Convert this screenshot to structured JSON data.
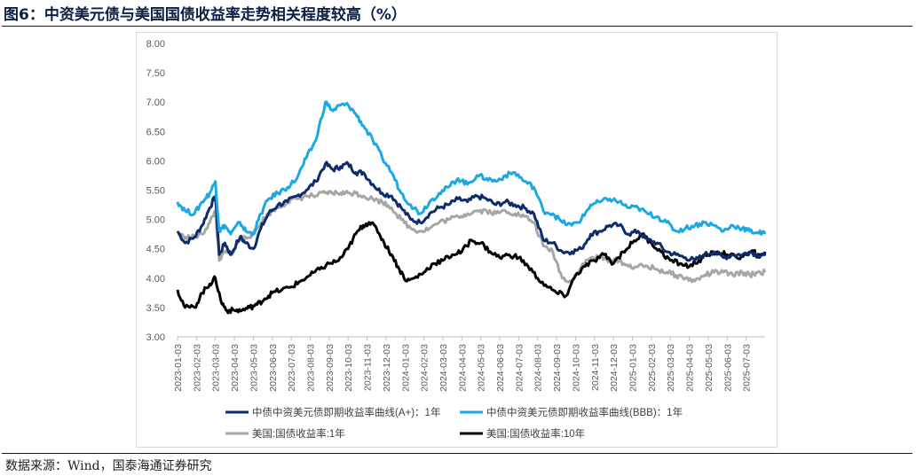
{
  "title": "图6：中资美元债与美国国债收益率走势相关程度较高（%）",
  "source": "数据来源：Wind，国泰海通证券研究",
  "chart_data": {
    "type": "line",
    "title": "中资美元债与美国国债收益率走势相关程度较高（%）",
    "ylim": [
      3.0,
      8.0
    ],
    "yticks": [
      "3.00",
      "3.50",
      "4.00",
      "4.50",
      "5.00",
      "5.50",
      "6.00",
      "6.50",
      "7.00",
      "7.50",
      "8.00"
    ],
    "x_months": 31,
    "xtick_labels": [
      "2023-01-03",
      "2023-02-03",
      "2023-03-03",
      "2023-04-03",
      "2023-05-03",
      "2023-06-03",
      "2023-07-03",
      "2023-08-03",
      "2023-09-03",
      "2023-10-03",
      "2023-11-03",
      "2023-12-03",
      "2024-01-03",
      "2024-02-03",
      "2024-03-03",
      "2024-04-03",
      "2024-05-03",
      "2024-06-03",
      "2024-07-03",
      "2024-08-03",
      "2024-09-03",
      "2024-10-03",
      "2024-11-03",
      "2024-12-03",
      "2025-01-03",
      "2025-02-03",
      "2025-03-03",
      "2025-04-03",
      "2025-05-03",
      "2025-06-03",
      "2025-07-03"
    ],
    "series": [
      {
        "name": "中债中资美元债即期收益率曲线(A+)：1年",
        "color": "#0e2b6b",
        "width": 3,
        "points": [
          [
            0,
            4.8
          ],
          [
            0.4,
            4.6
          ],
          [
            0.9,
            4.7
          ],
          [
            1.3,
            4.9
          ],
          [
            1.7,
            5.2
          ],
          [
            2.0,
            5.4
          ],
          [
            2.2,
            4.4
          ],
          [
            2.5,
            4.6
          ],
          [
            2.8,
            4.4
          ],
          [
            3.3,
            4.7
          ],
          [
            3.6,
            4.6
          ],
          [
            4.0,
            4.5
          ],
          [
            4.4,
            4.85
          ],
          [
            4.8,
            5.1
          ],
          [
            5.3,
            5.25
          ],
          [
            5.8,
            5.3
          ],
          [
            6.3,
            5.4
          ],
          [
            6.8,
            5.5
          ],
          [
            7.3,
            5.65
          ],
          [
            7.8,
            5.95
          ],
          [
            8.2,
            5.85
          ],
          [
            8.6,
            5.9
          ],
          [
            9.0,
            5.95
          ],
          [
            9.4,
            5.8
          ],
          [
            9.8,
            5.8
          ],
          [
            10.3,
            5.6
          ],
          [
            10.8,
            5.45
          ],
          [
            11.3,
            5.4
          ],
          [
            11.8,
            5.2
          ],
          [
            12.3,
            5.0
          ],
          [
            12.8,
            4.95
          ],
          [
            13.3,
            5.1
          ],
          [
            13.8,
            5.2
          ],
          [
            14.3,
            5.25
          ],
          [
            14.8,
            5.35
          ],
          [
            15.3,
            5.3
          ],
          [
            15.8,
            5.4
          ],
          [
            16.3,
            5.35
          ],
          [
            16.8,
            5.25
          ],
          [
            17.3,
            5.3
          ],
          [
            17.8,
            5.25
          ],
          [
            18.3,
            5.2
          ],
          [
            18.8,
            5.1
          ],
          [
            19.3,
            4.65
          ],
          [
            19.8,
            4.6
          ],
          [
            20.3,
            4.45
          ],
          [
            20.8,
            4.45
          ],
          [
            21.3,
            4.5
          ],
          [
            21.8,
            4.75
          ],
          [
            22.3,
            4.8
          ],
          [
            22.8,
            4.9
          ],
          [
            23.3,
            4.9
          ],
          [
            23.8,
            4.75
          ],
          [
            24.3,
            4.8
          ],
          [
            24.8,
            4.65
          ],
          [
            25.3,
            4.6
          ],
          [
            25.8,
            4.45
          ],
          [
            26.3,
            4.4
          ],
          [
            26.8,
            4.35
          ],
          [
            27.3,
            4.3
          ],
          [
            27.8,
            4.4
          ],
          [
            28.3,
            4.45
          ],
          [
            28.8,
            4.35
          ],
          [
            29.3,
            4.4
          ],
          [
            29.8,
            4.4
          ],
          [
            30.2,
            4.45
          ],
          [
            30.6,
            4.4
          ],
          [
            31.0,
            4.38
          ]
        ]
      },
      {
        "name": "中债中资美元债即期收益率曲线(BBB)：1年",
        "color": "#1ba8e4",
        "width": 3,
        "points": [
          [
            0,
            5.3
          ],
          [
            0.4,
            5.15
          ],
          [
            0.9,
            5.1
          ],
          [
            1.3,
            5.3
          ],
          [
            1.7,
            5.45
          ],
          [
            2.0,
            5.65
          ],
          [
            2.2,
            4.8
          ],
          [
            2.5,
            4.9
          ],
          [
            2.8,
            4.75
          ],
          [
            3.3,
            4.95
          ],
          [
            3.6,
            4.8
          ],
          [
            4.0,
            4.75
          ],
          [
            4.4,
            5.1
          ],
          [
            4.8,
            5.35
          ],
          [
            5.3,
            5.45
          ],
          [
            5.8,
            5.55
          ],
          [
            6.3,
            5.7
          ],
          [
            6.8,
            6.05
          ],
          [
            7.3,
            6.35
          ],
          [
            7.8,
            7.0
          ],
          [
            8.2,
            6.85
          ],
          [
            8.6,
            6.95
          ],
          [
            9.0,
            6.95
          ],
          [
            9.4,
            6.8
          ],
          [
            9.8,
            6.6
          ],
          [
            10.3,
            6.35
          ],
          [
            10.8,
            6.05
          ],
          [
            11.3,
            5.8
          ],
          [
            11.8,
            5.45
          ],
          [
            12.3,
            5.25
          ],
          [
            12.8,
            5.1
          ],
          [
            13.3,
            5.3
          ],
          [
            13.8,
            5.45
          ],
          [
            14.3,
            5.55
          ],
          [
            14.8,
            5.7
          ],
          [
            15.3,
            5.6
          ],
          [
            15.8,
            5.75
          ],
          [
            16.3,
            5.7
          ],
          [
            16.8,
            5.65
          ],
          [
            17.3,
            5.75
          ],
          [
            17.8,
            5.8
          ],
          [
            18.3,
            5.65
          ],
          [
            18.8,
            5.55
          ],
          [
            19.3,
            5.15
          ],
          [
            19.8,
            5.1
          ],
          [
            20.3,
            4.95
          ],
          [
            20.8,
            4.9
          ],
          [
            21.3,
            5.0
          ],
          [
            21.8,
            5.25
          ],
          [
            22.3,
            5.3
          ],
          [
            22.8,
            5.35
          ],
          [
            23.3,
            5.3
          ],
          [
            23.8,
            5.2
          ],
          [
            24.3,
            5.2
          ],
          [
            24.8,
            5.1
          ],
          [
            25.3,
            5.05
          ],
          [
            25.8,
            4.95
          ],
          [
            26.3,
            4.8
          ],
          [
            26.8,
            4.85
          ],
          [
            27.3,
            4.9
          ],
          [
            27.8,
            4.95
          ],
          [
            28.3,
            4.9
          ],
          [
            28.8,
            4.8
          ],
          [
            29.3,
            4.9
          ],
          [
            29.8,
            4.85
          ],
          [
            30.2,
            4.8
          ],
          [
            30.6,
            4.78
          ],
          [
            31.0,
            4.75
          ]
        ]
      },
      {
        "name": "美国:国债收益率:1年",
        "color": "#a6a6a6",
        "width": 3,
        "points": [
          [
            0,
            4.75
          ],
          [
            0.4,
            4.7
          ],
          [
            0.9,
            4.7
          ],
          [
            1.3,
            4.75
          ],
          [
            1.7,
            4.95
          ],
          [
            2.0,
            5.15
          ],
          [
            2.2,
            4.3
          ],
          [
            2.5,
            4.45
          ],
          [
            2.8,
            4.4
          ],
          [
            3.3,
            4.65
          ],
          [
            3.6,
            4.7
          ],
          [
            4.0,
            4.75
          ],
          [
            4.4,
            4.95
          ],
          [
            4.8,
            5.1
          ],
          [
            5.3,
            5.2
          ],
          [
            5.8,
            5.3
          ],
          [
            6.3,
            5.35
          ],
          [
            6.8,
            5.4
          ],
          [
            7.3,
            5.4
          ],
          [
            7.8,
            5.45
          ],
          [
            8.2,
            5.45
          ],
          [
            8.6,
            5.45
          ],
          [
            9.0,
            5.45
          ],
          [
            9.4,
            5.45
          ],
          [
            9.8,
            5.4
          ],
          [
            10.3,
            5.35
          ],
          [
            10.8,
            5.3
          ],
          [
            11.3,
            5.2
          ],
          [
            11.8,
            5.0
          ],
          [
            12.3,
            4.85
          ],
          [
            12.8,
            4.8
          ],
          [
            13.3,
            4.85
          ],
          [
            13.8,
            4.95
          ],
          [
            14.3,
            5.0
          ],
          [
            14.8,
            5.05
          ],
          [
            15.3,
            5.1
          ],
          [
            15.8,
            5.15
          ],
          [
            16.3,
            5.15
          ],
          [
            16.8,
            5.1
          ],
          [
            17.3,
            5.15
          ],
          [
            17.8,
            5.1
          ],
          [
            18.3,
            5.05
          ],
          [
            18.8,
            4.95
          ],
          [
            19.3,
            4.55
          ],
          [
            19.8,
            4.45
          ],
          [
            20.3,
            4.0
          ],
          [
            20.8,
            3.95
          ],
          [
            21.3,
            4.2
          ],
          [
            21.8,
            4.35
          ],
          [
            22.3,
            4.35
          ],
          [
            22.8,
            4.3
          ],
          [
            23.3,
            4.3
          ],
          [
            23.8,
            4.2
          ],
          [
            24.3,
            4.2
          ],
          [
            24.8,
            4.2
          ],
          [
            25.3,
            4.15
          ],
          [
            25.8,
            4.1
          ],
          [
            26.3,
            4.05
          ],
          [
            26.8,
            4.0
          ],
          [
            27.3,
            3.95
          ],
          [
            27.8,
            4.05
          ],
          [
            28.3,
            4.1
          ],
          [
            28.8,
            4.1
          ],
          [
            29.3,
            4.05
          ],
          [
            29.8,
            4.1
          ],
          [
            30.2,
            4.05
          ],
          [
            30.6,
            4.1
          ],
          [
            31.0,
            4.1
          ]
        ]
      },
      {
        "name": "美国:国债收益率:10年",
        "color": "#000000",
        "width": 3,
        "points": [
          [
            0,
            3.8
          ],
          [
            0.4,
            3.5
          ],
          [
            0.9,
            3.5
          ],
          [
            1.3,
            3.75
          ],
          [
            1.7,
            3.9
          ],
          [
            2.0,
            4.0
          ],
          [
            2.3,
            3.6
          ],
          [
            2.6,
            3.45
          ],
          [
            3.0,
            3.45
          ],
          [
            3.4,
            3.45
          ],
          [
            3.8,
            3.5
          ],
          [
            4.2,
            3.55
          ],
          [
            4.6,
            3.65
          ],
          [
            5.0,
            3.75
          ],
          [
            5.5,
            3.8
          ],
          [
            6.0,
            3.85
          ],
          [
            6.5,
            3.95
          ],
          [
            7.0,
            4.05
          ],
          [
            7.5,
            4.15
          ],
          [
            8.0,
            4.25
          ],
          [
            8.5,
            4.3
          ],
          [
            9.0,
            4.5
          ],
          [
            9.4,
            4.75
          ],
          [
            9.8,
            4.9
          ],
          [
            10.1,
            4.95
          ],
          [
            10.5,
            4.85
          ],
          [
            10.9,
            4.6
          ],
          [
            11.3,
            4.4
          ],
          [
            11.7,
            4.15
          ],
          [
            12.1,
            3.95
          ],
          [
            12.5,
            4.0
          ],
          [
            13.0,
            4.1
          ],
          [
            13.5,
            4.25
          ],
          [
            14.0,
            4.3
          ],
          [
            14.5,
            4.4
          ],
          [
            15.0,
            4.45
          ],
          [
            15.5,
            4.65
          ],
          [
            16.0,
            4.6
          ],
          [
            16.5,
            4.45
          ],
          [
            17.0,
            4.35
          ],
          [
            17.5,
            4.4
          ],
          [
            18.0,
            4.35
          ],
          [
            18.5,
            4.2
          ],
          [
            19.0,
            4.0
          ],
          [
            19.5,
            3.85
          ],
          [
            20.0,
            3.75
          ],
          [
            20.5,
            3.7
          ],
          [
            21.0,
            4.05
          ],
          [
            21.5,
            4.2
          ],
          [
            22.0,
            4.3
          ],
          [
            22.5,
            4.4
          ],
          [
            23.0,
            4.25
          ],
          [
            23.5,
            4.45
          ],
          [
            24.0,
            4.6
          ],
          [
            24.5,
            4.75
          ],
          [
            25.0,
            4.6
          ],
          [
            25.5,
            4.45
          ],
          [
            26.0,
            4.3
          ],
          [
            26.5,
            4.25
          ],
          [
            27.0,
            4.2
          ],
          [
            27.5,
            4.3
          ],
          [
            28.0,
            4.4
          ],
          [
            28.5,
            4.45
          ],
          [
            29.0,
            4.4
          ],
          [
            29.5,
            4.35
          ],
          [
            30.0,
            4.4
          ],
          [
            30.4,
            4.45
          ],
          [
            30.7,
            4.35
          ],
          [
            31.0,
            4.45
          ]
        ]
      }
    ]
  }
}
